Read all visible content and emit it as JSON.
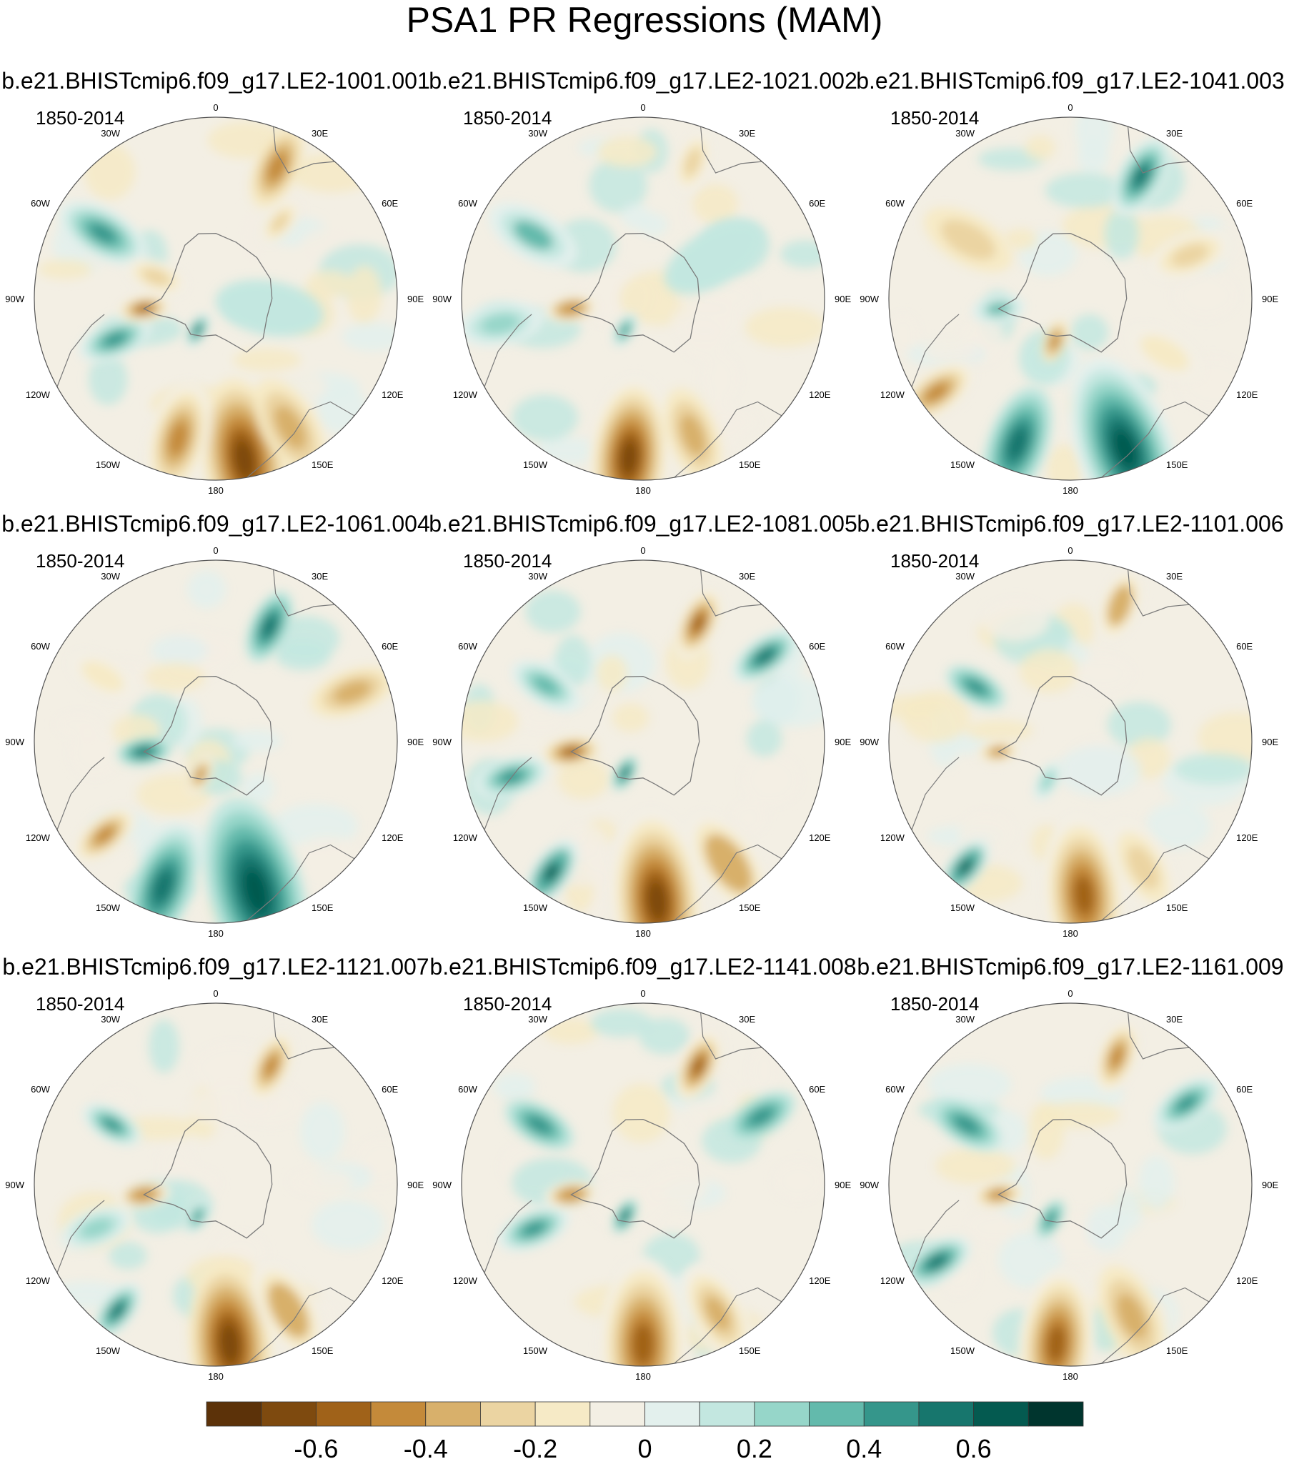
{
  "chart_data": {
    "type": "heatmap",
    "title": "PSA1 PR Regressions (MAM)",
    "projection": "south-polar-stereographic",
    "longitude_labels": [
      "0",
      "30E",
      "60E",
      "90E",
      "120E",
      "150E",
      "180",
      "150W",
      "120W",
      "90W",
      "60W",
      "30W"
    ],
    "panels": [
      {
        "title": "b.e21.BHISTcmip6.f09_g17.LE2-1001.001",
        "period": "1850-2014"
      },
      {
        "title": "b.e21.BHISTcmip6.f09_g17.LE2-1021.002",
        "period": "1850-2014"
      },
      {
        "title": "b.e21.BHISTcmip6.f09_g17.LE2-1041.003",
        "period": "1850-2014"
      },
      {
        "title": "b.e21.BHISTcmip6.f09_g17.LE2-1061.004",
        "period": "1850-2014"
      },
      {
        "title": "b.e21.BHISTcmip6.f09_g17.LE2-1081.005",
        "period": "1850-2014"
      },
      {
        "title": "b.e21.BHISTcmip6.f09_g17.LE2-1101.006",
        "period": "1850-2014"
      },
      {
        "title": "b.e21.BHISTcmip6.f09_g17.LE2-1121.007",
        "period": "1850-2014"
      },
      {
        "title": "b.e21.BHISTcmip6.f09_g17.LE2-1141.008",
        "period": "1850-2014"
      },
      {
        "title": "b.e21.BHISTcmip6.f09_g17.LE2-1161.009",
        "period": "1850-2014"
      }
    ],
    "colorbar": {
      "levels": [
        -0.7,
        -0.6,
        -0.5,
        -0.4,
        -0.3,
        -0.2,
        -0.1,
        0,
        0.1,
        0.2,
        0.3,
        0.4,
        0.5,
        0.6,
        0.7
      ],
      "tick_labels": [
        "-0.6",
        "-0.4",
        "-0.2",
        "0",
        "0.2",
        "0.4",
        "0.6"
      ],
      "tick_values": [
        -0.6,
        -0.4,
        -0.2,
        0,
        0.2,
        0.4,
        0.6
      ],
      "colors": [
        "#5c3209",
        "#7e4a0f",
        "#a06219",
        "#c48a3a",
        "#d8b06b",
        "#ebd4a2",
        "#f6eac6",
        "#f3efe4",
        "#e3f0ed",
        "#c3e7e0",
        "#96d6c9",
        "#63baac",
        "#35968b",
        "#17766d",
        "#045a50",
        "#00352e"
      ]
    }
  }
}
